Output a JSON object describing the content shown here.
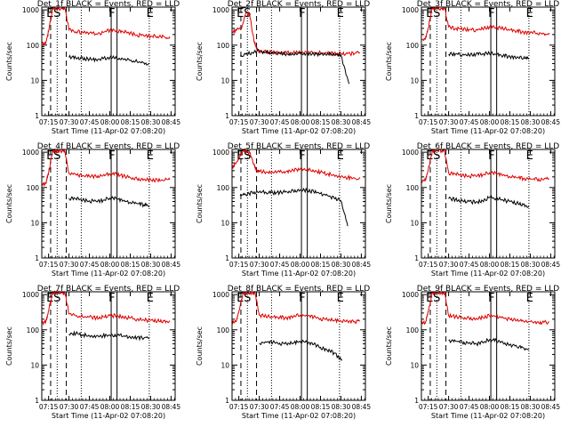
{
  "chart_data": {
    "type": "line",
    "x_tick_labels": [
      "07:15",
      "07:30",
      "07:45",
      "08:00",
      "08:15",
      "08:30",
      "08:45"
    ],
    "x_ticks_min": [
      435,
      450,
      465,
      480,
      495,
      510,
      525
    ],
    "xlim_min": [
      430,
      528
    ],
    "y_tick_labels": [
      "1",
      "10",
      "100",
      "1000"
    ],
    "y_ticks": [
      1,
      10,
      100,
      1000
    ],
    "ylim": [
      1,
      1200
    ],
    "ylog": true,
    "xlabel": "Start Time (11-Apr-02 07:08:20)",
    "ylabel": "Counts/sec",
    "series_colors": {
      "events": "#000000",
      "lld": "#dd0000"
    },
    "marker_labels": [
      "E",
      "S",
      "F",
      "E"
    ],
    "vertical_lines": {
      "dashed_min": [
        436.5,
        448
      ],
      "dotted_min": [
        441.3,
        459,
        509
      ],
      "solid_min": [
        481,
        485.3
      ]
    },
    "panels": [
      {
        "title": "Det_1f BLACK = Events, RED = LLD",
        "events": {
          "x": [
            450,
            455,
            460,
            465,
            470,
            475,
            480,
            485,
            490,
            495,
            500,
            505,
            509
          ],
          "y": [
            45,
            44,
            42,
            40,
            39,
            41,
            44,
            43,
            39,
            37,
            34,
            32,
            30
          ]
        },
        "lld": {
          "x": [
            430,
            433,
            435,
            438,
            440,
            445,
            447,
            450,
            455,
            460,
            465,
            470,
            475,
            480,
            485,
            490,
            495,
            500,
            505,
            510,
            515,
            520,
            524
          ],
          "y": [
            110,
            115,
            250,
            1100,
            1100,
            1100,
            1100,
            270,
            240,
            230,
            220,
            210,
            230,
            265,
            260,
            235,
            220,
            195,
            185,
            180,
            175,
            170,
            175
          ]
        }
      },
      {
        "title": "Det_2f BLACK = Events, RED = LLD",
        "events": {
          "x": [
            436,
            440,
            445,
            450,
            455,
            460,
            465,
            470,
            475,
            480,
            485,
            490,
            495,
            500,
            505,
            510,
            516
          ],
          "y": [
            52,
            55,
            62,
            68,
            62,
            60,
            58,
            56,
            55,
            57,
            58,
            56,
            55,
            55,
            54,
            53,
            8
          ]
        },
        "lld": {
          "x": [
            430,
            433,
            437,
            440,
            443,
            446,
            448,
            450,
            455,
            460,
            465,
            470,
            475,
            480,
            485,
            490,
            495,
            500,
            505,
            510,
            515,
            520,
            524
          ],
          "y": [
            240,
            260,
            300,
            800,
            700,
            140,
            80,
            66,
            64,
            62,
            61,
            60,
            60,
            62,
            62,
            61,
            60,
            59,
            58,
            58,
            57,
            58,
            60
          ]
        }
      },
      {
        "title": "Det_3f BLACK = Events, RED = LLD",
        "events": {
          "x": [
            450,
            455,
            460,
            465,
            470,
            475,
            480,
            485,
            490,
            495,
            500,
            505,
            509
          ],
          "y": [
            55,
            56,
            53,
            52,
            54,
            57,
            58,
            55,
            50,
            48,
            44,
            42,
            40
          ]
        },
        "lld": {
          "x": [
            430,
            433,
            435,
            438,
            440,
            445,
            447,
            450,
            455,
            460,
            465,
            470,
            475,
            480,
            485,
            490,
            495,
            500,
            505,
            510,
            515,
            520,
            524
          ],
          "y": [
            140,
            150,
            300,
            1100,
            1100,
            1100,
            1100,
            330,
            300,
            280,
            275,
            265,
            290,
            320,
            320,
            295,
            270,
            250,
            235,
            225,
            220,
            215,
            220
          ]
        }
      },
      {
        "title": "Det_4f BLACK = Events, RED = LLD",
        "events": {
          "x": [
            450,
            455,
            460,
            465,
            470,
            475,
            480,
            485,
            490,
            495,
            500,
            505,
            509
          ],
          "y": [
            50,
            48,
            44,
            42,
            40,
            43,
            50,
            48,
            42,
            38,
            35,
            32,
            28
          ]
        },
        "lld": {
          "x": [
            430,
            433,
            435,
            438,
            440,
            445,
            447,
            450,
            455,
            460,
            465,
            470,
            475,
            480,
            485,
            490,
            495,
            500,
            505,
            510,
            515,
            520,
            524
          ],
          "y": [
            125,
            130,
            260,
            1100,
            1100,
            1100,
            1100,
            250,
            230,
            215,
            210,
            200,
            220,
            240,
            235,
            210,
            190,
            175,
            170,
            165,
            160,
            160,
            165
          ]
        }
      },
      {
        "title": "Det_5f BLACK = Events, RED = LLD",
        "events": {
          "x": [
            436,
            440,
            445,
            450,
            455,
            460,
            465,
            470,
            475,
            480,
            485,
            490,
            495,
            500,
            505,
            510,
            515
          ],
          "y": [
            58,
            62,
            70,
            75,
            72,
            70,
            72,
            75,
            80,
            85,
            83,
            76,
            68,
            60,
            50,
            42,
            8
          ]
        },
        "lld": {
          "x": [
            430,
            433,
            437,
            440,
            443,
            446,
            448,
            450,
            455,
            460,
            465,
            470,
            475,
            480,
            485,
            490,
            495,
            500,
            505,
            510,
            515,
            520,
            524
          ],
          "y": [
            380,
            500,
            1000,
            1100,
            1000,
            450,
            300,
            280,
            275,
            270,
            275,
            285,
            310,
            330,
            320,
            290,
            270,
            245,
            225,
            205,
            190,
            185,
            195
          ]
        }
      },
      {
        "title": "Det_6f BLACK = Events, RED = LLD",
        "events": {
          "x": [
            450,
            455,
            460,
            465,
            470,
            475,
            480,
            485,
            490,
            495,
            500,
            505,
            509
          ],
          "y": [
            48,
            46,
            42,
            40,
            38,
            42,
            52,
            50,
            44,
            40,
            36,
            33,
            30
          ]
        },
        "lld": {
          "x": [
            430,
            433,
            435,
            438,
            440,
            445,
            447,
            450,
            455,
            460,
            465,
            470,
            475,
            480,
            485,
            490,
            495,
            500,
            505,
            510,
            515,
            520,
            524
          ],
          "y": [
            150,
            160,
            320,
            1100,
            1100,
            1100,
            1100,
            260,
            240,
            220,
            215,
            210,
            230,
            260,
            250,
            225,
            205,
            190,
            180,
            175,
            170,
            168,
            172
          ]
        }
      },
      {
        "title": "Det_7f BLACK = Events, RED = LLD",
        "events": {
          "x": [
            450,
            455,
            460,
            465,
            470,
            475,
            480,
            485,
            490,
            495,
            500,
            505,
            509
          ],
          "y": [
            75,
            78,
            72,
            68,
            66,
            68,
            70,
            70,
            66,
            62,
            60,
            58,
            56
          ]
        },
        "lld": {
          "x": [
            430,
            433,
            435,
            438,
            440,
            445,
            447,
            450,
            455,
            460,
            465,
            470,
            475,
            480,
            485,
            490,
            495,
            500,
            505,
            510,
            515,
            520,
            524
          ],
          "y": [
            160,
            170,
            340,
            1100,
            1100,
            1100,
            1100,
            280,
            250,
            235,
            230,
            220,
            235,
            255,
            250,
            230,
            215,
            200,
            190,
            185,
            180,
            178,
            182
          ]
        }
      },
      {
        "title": "Det_8f BLACK = Events, RED = LLD",
        "events": {
          "x": [
            450,
            455,
            460,
            465,
            470,
            475,
            480,
            485,
            490,
            495,
            500,
            505,
            511
          ],
          "y": [
            42,
            45,
            44,
            42,
            40,
            42,
            47,
            45,
            38,
            32,
            26,
            22,
            14
          ]
        },
        "lld": {
          "x": [
            430,
            433,
            435,
            438,
            440,
            445,
            447,
            450,
            455,
            460,
            465,
            470,
            475,
            480,
            485,
            490,
            495,
            500,
            505,
            510,
            515,
            520,
            524
          ],
          "y": [
            160,
            170,
            340,
            1100,
            1100,
            1100,
            1100,
            260,
            240,
            230,
            225,
            220,
            235,
            260,
            255,
            230,
            210,
            195,
            185,
            180,
            175,
            172,
            176
          ]
        }
      },
      {
        "title": "Det_9f BLACK = Events, RED = LLD",
        "events": {
          "x": [
            450,
            455,
            460,
            465,
            470,
            475,
            480,
            485,
            490,
            495,
            500,
            505,
            509
          ],
          "y": [
            50,
            48,
            44,
            42,
            40,
            44,
            52,
            50,
            43,
            38,
            34,
            31,
            28
          ]
        },
        "lld": {
          "x": [
            430,
            433,
            435,
            438,
            440,
            445,
            447,
            450,
            455,
            460,
            465,
            470,
            475,
            480,
            485,
            490,
            495,
            500,
            505,
            510,
            515,
            520,
            524
          ],
          "y": [
            150,
            160,
            320,
            1100,
            1100,
            1100,
            1100,
            255,
            235,
            220,
            215,
            205,
            225,
            250,
            245,
            220,
            200,
            185,
            175,
            170,
            165,
            163,
            168
          ]
        }
      }
    ]
  }
}
